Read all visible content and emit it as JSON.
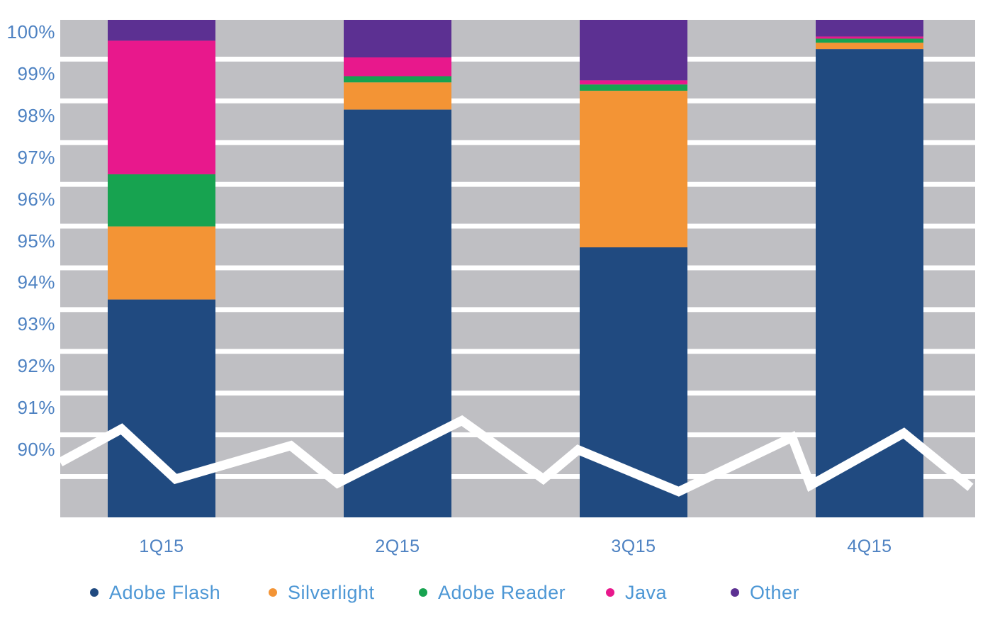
{
  "figure": {
    "background_color": "#FFFFFF",
    "gridband_color": "#BFBFC3",
    "axis_label_color": "#4E82C2",
    "legend_label_color": "#4D97D5"
  },
  "chart_data": {
    "type": "bar",
    "subtype": "stacked-100pct-column-with-line-overlay",
    "categories": [
      "1Q15",
      "2Q15",
      "3Q15",
      "4Q15"
    ],
    "stack_order_top_to_bottom": [
      "Other",
      "Java",
      "Adobe Reader",
      "Silverlight",
      "Adobe Flash"
    ],
    "series": [
      {
        "name": "Adobe Flash",
        "color": "#204A80",
        "values": [
          93.3,
          97.85,
          94.55,
          99.3
        ]
      },
      {
        "name": "Silverlight",
        "color": "#F39435",
        "values": [
          1.75,
          0.65,
          3.75,
          0.15
        ]
      },
      {
        "name": "Adobe Reader",
        "color": "#17A350",
        "values": [
          1.25,
          0.15,
          0.15,
          0.1
        ]
      },
      {
        "name": "Java",
        "color": "#E8188C",
        "values": [
          3.2,
          0.45,
          0.1,
          0.05
        ]
      },
      {
        "name": "Other",
        "color": "#5C3092",
        "values": [
          0.5,
          0.9,
          1.45,
          0.4
        ]
      }
    ],
    "line_series": {
      "name": "trend-line",
      "color": "#FFFFFF",
      "points": [
        {
          "x": 0.0,
          "v": 89.4
        },
        {
          "x": 0.067,
          "v": 90.2
        },
        {
          "x": 0.126,
          "v": 89.0
        },
        {
          "x": 0.252,
          "v": 89.8
        },
        {
          "x": 0.303,
          "v": 88.9
        },
        {
          "x": 0.439,
          "v": 90.4
        },
        {
          "x": 0.528,
          "v": 89.0
        },
        {
          "x": 0.566,
          "v": 89.7
        },
        {
          "x": 0.676,
          "v": 88.7
        },
        {
          "x": 0.8,
          "v": 90.0
        },
        {
          "x": 0.82,
          "v": 88.85
        },
        {
          "x": 0.922,
          "v": 90.1
        },
        {
          "x": 0.995,
          "v": 88.8
        }
      ]
    },
    "y_axis": {
      "unit": "%",
      "max": 100,
      "tick_step": 1,
      "tick_labels": [
        "100%",
        "99%",
        "98%",
        "97%",
        "96%",
        "95%",
        "94%",
        "93%",
        "92%",
        "91%",
        "90%"
      ],
      "plot_bottom_value": 88.1,
      "grid": "horizontal-gray-bands"
    },
    "legend": {
      "position": "bottom",
      "entries": [
        {
          "label": "Adobe Flash",
          "color": "#204A80"
        },
        {
          "label": "Silverlight",
          "color": "#F39435"
        },
        {
          "label": "Adobe Reader",
          "color": "#17A350"
        },
        {
          "label": "Java",
          "color": "#E8188C"
        },
        {
          "label": "Other",
          "color": "#5C3092"
        }
      ]
    }
  }
}
